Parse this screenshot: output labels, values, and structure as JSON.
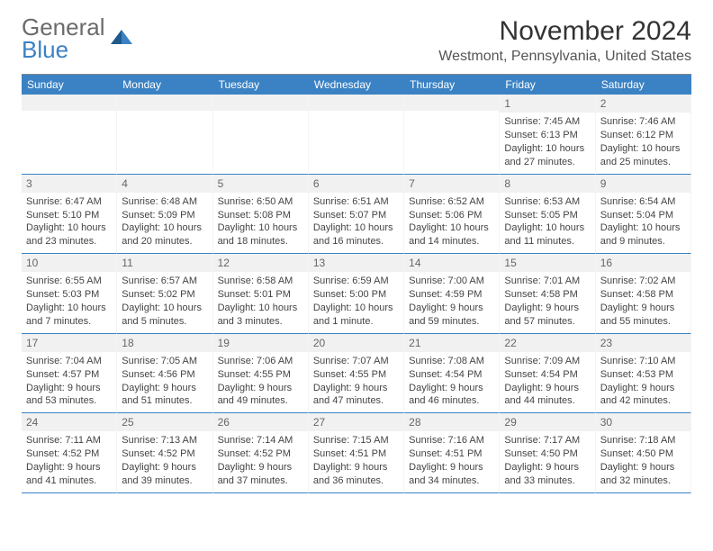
{
  "logo": {
    "text_top": "General",
    "text_bottom": "Blue"
  },
  "title": "November 2024",
  "location": "Westmont, Pennsylvania, United States",
  "colors": {
    "header_bg": "#3b82c4",
    "daynum_bg": "#f1f1f1",
    "cell_border_bottom": "#3b82c4",
    "text": "#333333",
    "muted": "#666666",
    "body_text": "#444444",
    "logo_gray": "#6b6b6b",
    "logo_blue": "#3b82c4"
  },
  "layout": {
    "columns": 7,
    "rows": 5,
    "first_weekday": "Sunday"
  },
  "fonts": {
    "title_size": 30,
    "subtitle_size": 16,
    "dow_size": 12,
    "daynum_size": 12,
    "body_size": 11
  },
  "days_of_week": [
    "Sunday",
    "Monday",
    "Tuesday",
    "Wednesday",
    "Thursday",
    "Friday",
    "Saturday"
  ],
  "cells": [
    {
      "day": "",
      "sunrise": "",
      "sunset": "",
      "daylight": ""
    },
    {
      "day": "",
      "sunrise": "",
      "sunset": "",
      "daylight": ""
    },
    {
      "day": "",
      "sunrise": "",
      "sunset": "",
      "daylight": ""
    },
    {
      "day": "",
      "sunrise": "",
      "sunset": "",
      "daylight": ""
    },
    {
      "day": "",
      "sunrise": "",
      "sunset": "",
      "daylight": ""
    },
    {
      "day": "1",
      "sunrise": "Sunrise: 7:45 AM",
      "sunset": "Sunset: 6:13 PM",
      "daylight": "Daylight: 10 hours and 27 minutes."
    },
    {
      "day": "2",
      "sunrise": "Sunrise: 7:46 AM",
      "sunset": "Sunset: 6:12 PM",
      "daylight": "Daylight: 10 hours and 25 minutes."
    },
    {
      "day": "3",
      "sunrise": "Sunrise: 6:47 AM",
      "sunset": "Sunset: 5:10 PM",
      "daylight": "Daylight: 10 hours and 23 minutes."
    },
    {
      "day": "4",
      "sunrise": "Sunrise: 6:48 AM",
      "sunset": "Sunset: 5:09 PM",
      "daylight": "Daylight: 10 hours and 20 minutes."
    },
    {
      "day": "5",
      "sunrise": "Sunrise: 6:50 AM",
      "sunset": "Sunset: 5:08 PM",
      "daylight": "Daylight: 10 hours and 18 minutes."
    },
    {
      "day": "6",
      "sunrise": "Sunrise: 6:51 AM",
      "sunset": "Sunset: 5:07 PM",
      "daylight": "Daylight: 10 hours and 16 minutes."
    },
    {
      "day": "7",
      "sunrise": "Sunrise: 6:52 AM",
      "sunset": "Sunset: 5:06 PM",
      "daylight": "Daylight: 10 hours and 14 minutes."
    },
    {
      "day": "8",
      "sunrise": "Sunrise: 6:53 AM",
      "sunset": "Sunset: 5:05 PM",
      "daylight": "Daylight: 10 hours and 11 minutes."
    },
    {
      "day": "9",
      "sunrise": "Sunrise: 6:54 AM",
      "sunset": "Sunset: 5:04 PM",
      "daylight": "Daylight: 10 hours and 9 minutes."
    },
    {
      "day": "10",
      "sunrise": "Sunrise: 6:55 AM",
      "sunset": "Sunset: 5:03 PM",
      "daylight": "Daylight: 10 hours and 7 minutes."
    },
    {
      "day": "11",
      "sunrise": "Sunrise: 6:57 AM",
      "sunset": "Sunset: 5:02 PM",
      "daylight": "Daylight: 10 hours and 5 minutes."
    },
    {
      "day": "12",
      "sunrise": "Sunrise: 6:58 AM",
      "sunset": "Sunset: 5:01 PM",
      "daylight": "Daylight: 10 hours and 3 minutes."
    },
    {
      "day": "13",
      "sunrise": "Sunrise: 6:59 AM",
      "sunset": "Sunset: 5:00 PM",
      "daylight": "Daylight: 10 hours and 1 minute."
    },
    {
      "day": "14",
      "sunrise": "Sunrise: 7:00 AM",
      "sunset": "Sunset: 4:59 PM",
      "daylight": "Daylight: 9 hours and 59 minutes."
    },
    {
      "day": "15",
      "sunrise": "Sunrise: 7:01 AM",
      "sunset": "Sunset: 4:58 PM",
      "daylight": "Daylight: 9 hours and 57 minutes."
    },
    {
      "day": "16",
      "sunrise": "Sunrise: 7:02 AM",
      "sunset": "Sunset: 4:58 PM",
      "daylight": "Daylight: 9 hours and 55 minutes."
    },
    {
      "day": "17",
      "sunrise": "Sunrise: 7:04 AM",
      "sunset": "Sunset: 4:57 PM",
      "daylight": "Daylight: 9 hours and 53 minutes."
    },
    {
      "day": "18",
      "sunrise": "Sunrise: 7:05 AM",
      "sunset": "Sunset: 4:56 PM",
      "daylight": "Daylight: 9 hours and 51 minutes."
    },
    {
      "day": "19",
      "sunrise": "Sunrise: 7:06 AM",
      "sunset": "Sunset: 4:55 PM",
      "daylight": "Daylight: 9 hours and 49 minutes."
    },
    {
      "day": "20",
      "sunrise": "Sunrise: 7:07 AM",
      "sunset": "Sunset: 4:55 PM",
      "daylight": "Daylight: 9 hours and 47 minutes."
    },
    {
      "day": "21",
      "sunrise": "Sunrise: 7:08 AM",
      "sunset": "Sunset: 4:54 PM",
      "daylight": "Daylight: 9 hours and 46 minutes."
    },
    {
      "day": "22",
      "sunrise": "Sunrise: 7:09 AM",
      "sunset": "Sunset: 4:54 PM",
      "daylight": "Daylight: 9 hours and 44 minutes."
    },
    {
      "day": "23",
      "sunrise": "Sunrise: 7:10 AM",
      "sunset": "Sunset: 4:53 PM",
      "daylight": "Daylight: 9 hours and 42 minutes."
    },
    {
      "day": "24",
      "sunrise": "Sunrise: 7:11 AM",
      "sunset": "Sunset: 4:52 PM",
      "daylight": "Daylight: 9 hours and 41 minutes."
    },
    {
      "day": "25",
      "sunrise": "Sunrise: 7:13 AM",
      "sunset": "Sunset: 4:52 PM",
      "daylight": "Daylight: 9 hours and 39 minutes."
    },
    {
      "day": "26",
      "sunrise": "Sunrise: 7:14 AM",
      "sunset": "Sunset: 4:52 PM",
      "daylight": "Daylight: 9 hours and 37 minutes."
    },
    {
      "day": "27",
      "sunrise": "Sunrise: 7:15 AM",
      "sunset": "Sunset: 4:51 PM",
      "daylight": "Daylight: 9 hours and 36 minutes."
    },
    {
      "day": "28",
      "sunrise": "Sunrise: 7:16 AM",
      "sunset": "Sunset: 4:51 PM",
      "daylight": "Daylight: 9 hours and 34 minutes."
    },
    {
      "day": "29",
      "sunrise": "Sunrise: 7:17 AM",
      "sunset": "Sunset: 4:50 PM",
      "daylight": "Daylight: 9 hours and 33 minutes."
    },
    {
      "day": "30",
      "sunrise": "Sunrise: 7:18 AM",
      "sunset": "Sunset: 4:50 PM",
      "daylight": "Daylight: 9 hours and 32 minutes."
    }
  ]
}
